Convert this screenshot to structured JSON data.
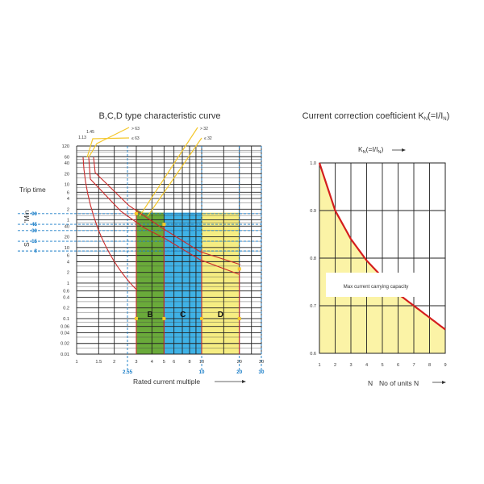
{
  "chart_data": [
    {
      "type": "line",
      "title": "B,C,D type characteristic curve",
      "xlabel": "Rated current multiple",
      "ylabel": "Trip time",
      "x_scale": "log",
      "xlim": [
        1,
        30
      ],
      "ylim_seconds": [
        0.01,
        7200
      ],
      "x_ticks": [
        "1",
        "1.5",
        "2",
        "3",
        "4",
        "5",
        "6",
        "8",
        "10",
        "20",
        "30"
      ],
      "x_extra_ticks": [
        "2.55",
        "10",
        "20",
        "30"
      ],
      "y_ticks_min": [
        "120",
        "60",
        "40",
        "20",
        "10",
        "6",
        "4",
        "2",
        "1"
      ],
      "y_ticks_sec": [
        "40",
        "20",
        "10",
        "6",
        "4",
        "2",
        "1",
        "0.6",
        "0.4",
        "0.2",
        "0.1",
        "0.06",
        "0.04",
        "0.02",
        "0.01"
      ],
      "y_marked_sec": [
        "90",
        "45",
        "30",
        "15",
        "8"
      ],
      "unit_min": "Min",
      "unit_sec": "S",
      "top_labels": [
        "1.45",
        "1.13",
        "> 63",
        "≤ 63",
        "> 32",
        "≤ 32"
      ],
      "zones": [
        {
          "name": "B",
          "x_from": 3,
          "x_to": 5,
          "color": "#6aaa3a"
        },
        {
          "name": "C",
          "x_from": 5,
          "x_to": 10,
          "color": "#3fb2e6"
        },
        {
          "name": "D",
          "x_from": 10,
          "x_to": 20,
          "color": "#f6ed82"
        }
      ],
      "curves": [
        {
          "color": "#cc2a2a",
          "points": [
            [
              1.1,
              3600
            ],
            [
              1.3,
              1500
            ],
            [
              2,
              600
            ],
            [
              3,
              70
            ],
            [
              5,
              20
            ],
            [
              10,
              4.5
            ],
            [
              20,
              2
            ]
          ]
        },
        {
          "color": "#cc2a2a",
          "points": [
            [
              1.13,
              5400
            ],
            [
              1.8,
              1000
            ],
            [
              3,
              100
            ],
            [
              5,
              30
            ],
            [
              10,
              8
            ],
            [
              20,
              3
            ]
          ]
        },
        {
          "color": "#cc2a2a",
          "points": [
            [
              1.05,
              7200
            ],
            [
              1.1,
              3000
            ],
            [
              1.5,
              15
            ],
            [
              2,
              2.5
            ],
            [
              2.55,
              0.8
            ]
          ]
        }
      ],
      "yellow_lines": [
        {
          "points": [
            [
              1.13,
              7200
            ],
            [
              2.8,
              30000
            ]
          ]
        },
        {
          "points": [
            [
              1.45,
              7200
            ],
            [
              3.4,
              30000
            ]
          ]
        },
        {
          "points": [
            [
              3,
              120
            ],
            [
              13,
              30000
            ]
          ]
        },
        {
          "points": [
            [
              3.5,
              120
            ],
            [
              15,
              30000
            ]
          ]
        }
      ],
      "markers": [
        [
          3,
          0.1
        ],
        [
          5,
          0.1
        ],
        [
          10,
          0.1
        ],
        [
          20,
          0.1
        ],
        [
          20,
          2.5
        ],
        [
          5,
          45
        ],
        [
          3,
          90
        ]
      ]
    },
    {
      "type": "area",
      "title": "Current correction coefticient K",
      "title_sub": "N",
      "title_tail": "(=I/I",
      "title_tail_sub": "N",
      "title_end": ")",
      "top_axis_label": "K",
      "top_axis_sub": "N",
      "top_axis_tail": "(=I/I",
      "top_axis_tail_sub": "N",
      "top_axis_end": ")",
      "xlabel_letter": "N",
      "xlabel": "No of units N",
      "xlim": [
        1,
        9
      ],
      "ylim": [
        0.6,
        1.0
      ],
      "x_ticks": [
        "1",
        "2",
        "3",
        "4",
        "5",
        "6",
        "7",
        "8",
        "9"
      ],
      "y_ticks": [
        "1.0",
        "0.9",
        "0.8",
        "0.7",
        "0.6"
      ],
      "x": [
        1,
        2,
        3,
        4,
        5,
        6,
        7,
        8,
        9
      ],
      "values": [
        1.0,
        0.9,
        0.84,
        0.795,
        0.76,
        0.725,
        0.7,
        0.675,
        0.65
      ],
      "fill_color": "#fbf3a6",
      "line_color": "#d41e1e",
      "annotation": "Max current carrying capacity"
    }
  ]
}
